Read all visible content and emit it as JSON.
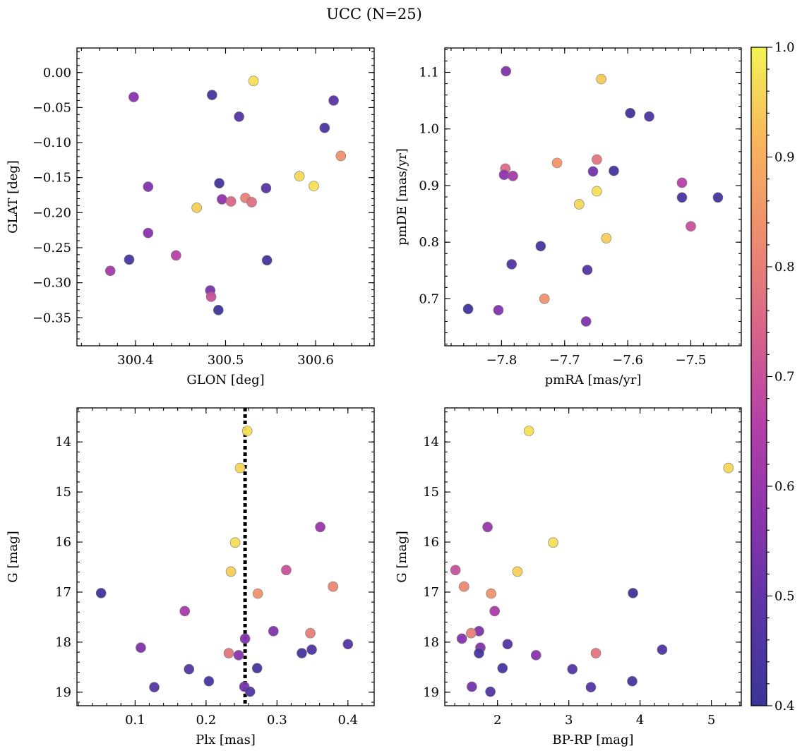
{
  "title": "UCC (N=25)",
  "colormap": {
    "name": "plasma",
    "vmin": 0.4,
    "vmax": 1.0,
    "ticks": [
      0.4,
      0.5,
      0.6,
      0.7,
      0.8,
      0.9,
      1.0
    ],
    "tick_labels": [
      "0.4",
      "0.5",
      "0.6",
      "0.7",
      "0.8",
      "0.9",
      "1.0"
    ],
    "stops": [
      "#3b3597",
      "#5a35a6",
      "#8b33ad",
      "#b53fa8",
      "#d8648a",
      "#ee8c6e",
      "#f9b55d",
      "#f2f453"
    ]
  },
  "chart_data": [
    {
      "type": "scatter",
      "id": "glon-glat",
      "xlabel": "GLON [deg]",
      "ylabel": "GLAT [deg]",
      "xlim": [
        300.335,
        300.665
      ],
      "ylim": [
        -0.39,
        0.035
      ],
      "y_inverted": false,
      "xticks": [
        300.4,
        300.5,
        300.6
      ],
      "xtick_labels": [
        "300.4",
        "300.5",
        "300.6"
      ],
      "yticks": [
        0.0,
        -0.05,
        -0.1,
        -0.15,
        -0.2,
        -0.25,
        -0.3,
        -0.35
      ],
      "ytick_labels": [
        "0.00",
        "−0.05",
        "−0.10",
        "−0.15",
        "−0.20",
        "−0.25",
        "−0.30",
        "−0.35"
      ],
      "points": [
        {
          "x": 300.531,
          "y": -0.012,
          "c": 0.97
        },
        {
          "x": 300.398,
          "y": -0.035,
          "c": 0.57
        },
        {
          "x": 300.485,
          "y": -0.032,
          "c": 0.42
        },
        {
          "x": 300.62,
          "y": -0.04,
          "c": 0.48
        },
        {
          "x": 300.515,
          "y": -0.063,
          "c": 0.47
        },
        {
          "x": 300.61,
          "y": -0.079,
          "c": 0.45
        },
        {
          "x": 300.628,
          "y": -0.119,
          "c": 0.84
        },
        {
          "x": 300.582,
          "y": -0.148,
          "c": 0.96
        },
        {
          "x": 300.493,
          "y": -0.158,
          "c": 0.43
        },
        {
          "x": 300.414,
          "y": -0.163,
          "c": 0.56
        },
        {
          "x": 300.598,
          "y": -0.162,
          "c": 0.97
        },
        {
          "x": 300.545,
          "y": -0.165,
          "c": 0.47
        },
        {
          "x": 300.468,
          "y": -0.193,
          "c": 0.95
        },
        {
          "x": 300.496,
          "y": -0.181,
          "c": 0.58
        },
        {
          "x": 300.506,
          "y": -0.184,
          "c": 0.75
        },
        {
          "x": 300.522,
          "y": -0.179,
          "c": 0.81
        },
        {
          "x": 300.529,
          "y": -0.185,
          "c": 0.77
        },
        {
          "x": 300.414,
          "y": -0.229,
          "c": 0.57
        },
        {
          "x": 300.445,
          "y": -0.261,
          "c": 0.66
        },
        {
          "x": 300.393,
          "y": -0.267,
          "c": 0.44
        },
        {
          "x": 300.546,
          "y": -0.268,
          "c": 0.43
        },
        {
          "x": 300.372,
          "y": -0.283,
          "c": 0.62
        },
        {
          "x": 300.483,
          "y": -0.311,
          "c": 0.54
        },
        {
          "x": 300.484,
          "y": -0.32,
          "c": 0.7
        },
        {
          "x": 300.492,
          "y": -0.339,
          "c": 0.41
        }
      ]
    },
    {
      "type": "scatter",
      "id": "pmra-pmde",
      "xlabel": "pmRA [mas/yr]",
      "ylabel": "pmDE [mas/yr]",
      "xlim": [
        -7.89,
        -7.42
      ],
      "ylim": [
        0.617,
        1.143
      ],
      "y_inverted": false,
      "xticks": [
        -7.8,
        -7.7,
        -7.6,
        -7.5
      ],
      "xtick_labels": [
        "−7.8",
        "−7.7",
        "−7.6",
        "−7.5"
      ],
      "yticks": [
        0.7,
        0.8,
        0.9,
        1.0,
        1.1
      ],
      "ytick_labels": [
        "0.7",
        "0.8",
        "0.9",
        "1.0",
        "1.1"
      ],
      "points": [
        {
          "x": -7.793,
          "y": 1.102,
          "c": 0.55
        },
        {
          "x": -7.642,
          "y": 1.088,
          "c": 0.94
        },
        {
          "x": -7.596,
          "y": 1.028,
          "c": 0.42
        },
        {
          "x": -7.566,
          "y": 1.022,
          "c": 0.45
        },
        {
          "x": -7.649,
          "y": 0.946,
          "c": 0.78
        },
        {
          "x": -7.712,
          "y": 0.94,
          "c": 0.85
        },
        {
          "x": -7.794,
          "y": 0.93,
          "c": 0.76
        },
        {
          "x": -7.622,
          "y": 0.926,
          "c": 0.43
        },
        {
          "x": -7.655,
          "y": 0.925,
          "c": 0.53
        },
        {
          "x": -7.796,
          "y": 0.919,
          "c": 0.58
        },
        {
          "x": -7.782,
          "y": 0.917,
          "c": 0.62
        },
        {
          "x": -7.514,
          "y": 0.905,
          "c": 0.66
        },
        {
          "x": -7.649,
          "y": 0.89,
          "c": 0.97
        },
        {
          "x": -7.514,
          "y": 0.879,
          "c": 0.44
        },
        {
          "x": -7.457,
          "y": 0.879,
          "c": 0.43
        },
        {
          "x": -7.677,
          "y": 0.867,
          "c": 0.96
        },
        {
          "x": -7.5,
          "y": 0.828,
          "c": 0.7
        },
        {
          "x": -7.634,
          "y": 0.807,
          "c": 0.95
        },
        {
          "x": -7.738,
          "y": 0.793,
          "c": 0.44
        },
        {
          "x": -7.784,
          "y": 0.761,
          "c": 0.46
        },
        {
          "x": -7.664,
          "y": 0.751,
          "c": 0.47
        },
        {
          "x": -7.732,
          "y": 0.7,
          "c": 0.84
        },
        {
          "x": -7.853,
          "y": 0.682,
          "c": 0.41
        },
        {
          "x": -7.805,
          "y": 0.68,
          "c": 0.56
        },
        {
          "x": -7.666,
          "y": 0.66,
          "c": 0.55
        }
      ]
    },
    {
      "type": "scatter",
      "id": "plx-g",
      "xlabel": "Plx [mas]",
      "ylabel": "G [mag]",
      "xlim": [
        0.018,
        0.437
      ],
      "ylim": [
        13.32,
        19.27
      ],
      "y_inverted": true,
      "vline": {
        "x": 0.255,
        "style": "dotted",
        "color": "#000000"
      },
      "xticks": [
        0.1,
        0.2,
        0.3,
        0.4
      ],
      "xtick_labels": [
        "0.1",
        "0.2",
        "0.3",
        "0.4"
      ],
      "yticks": [
        14,
        15,
        16,
        17,
        18,
        19
      ],
      "ytick_labels": [
        "14",
        "15",
        "16",
        "17",
        "18",
        "19"
      ],
      "points": [
        {
          "x": 0.258,
          "y": 13.78,
          "c": 0.97
        },
        {
          "x": 0.248,
          "y": 14.52,
          "c": 0.96
        },
        {
          "x": 0.361,
          "y": 15.7,
          "c": 0.6
        },
        {
          "x": 0.241,
          "y": 16.01,
          "c": 0.97
        },
        {
          "x": 0.235,
          "y": 16.59,
          "c": 0.95
        },
        {
          "x": 0.313,
          "y": 16.56,
          "c": 0.7
        },
        {
          "x": 0.379,
          "y": 16.89,
          "c": 0.82
        },
        {
          "x": 0.273,
          "y": 17.03,
          "c": 0.84
        },
        {
          "x": 0.052,
          "y": 17.02,
          "c": 0.41
        },
        {
          "x": 0.17,
          "y": 17.38,
          "c": 0.63
        },
        {
          "x": 0.295,
          "y": 17.78,
          "c": 0.55
        },
        {
          "x": 0.347,
          "y": 17.82,
          "c": 0.8
        },
        {
          "x": 0.255,
          "y": 17.93,
          "c": 0.56
        },
        {
          "x": 0.4,
          "y": 18.04,
          "c": 0.47
        },
        {
          "x": 0.108,
          "y": 18.11,
          "c": 0.55
        },
        {
          "x": 0.349,
          "y": 18.15,
          "c": 0.45
        },
        {
          "x": 0.335,
          "y": 18.22,
          "c": 0.44
        },
        {
          "x": 0.232,
          "y": 18.22,
          "c": 0.78
        },
        {
          "x": 0.246,
          "y": 18.26,
          "c": 0.57
        },
        {
          "x": 0.272,
          "y": 18.52,
          "c": 0.44
        },
        {
          "x": 0.176,
          "y": 18.54,
          "c": 0.47
        },
        {
          "x": 0.204,
          "y": 18.78,
          "c": 0.44
        },
        {
          "x": 0.254,
          "y": 18.89,
          "c": 0.53
        },
        {
          "x": 0.127,
          "y": 18.9,
          "c": 0.47
        },
        {
          "x": 0.262,
          "y": 18.99,
          "c": 0.46
        }
      ]
    },
    {
      "type": "scatter",
      "id": "bprp-g",
      "xlabel": "BP-RP [mag]",
      "ylabel": "G [mag]",
      "xlim": [
        1.26,
        5.42
      ],
      "ylim": [
        13.32,
        19.27
      ],
      "y_inverted": true,
      "xticks": [
        2,
        3,
        4,
        5
      ],
      "xtick_labels": [
        "2",
        "3",
        "4",
        "5"
      ],
      "yticks": [
        14,
        15,
        16,
        17,
        18,
        19
      ],
      "ytick_labels": [
        "14",
        "15",
        "16",
        "17",
        "18",
        "19"
      ],
      "points": [
        {
          "x": 2.44,
          "y": 13.78,
          "c": 0.97
        },
        {
          "x": 5.24,
          "y": 14.52,
          "c": 0.96
        },
        {
          "x": 1.86,
          "y": 15.7,
          "c": 0.6
        },
        {
          "x": 2.78,
          "y": 16.01,
          "c": 0.97
        },
        {
          "x": 2.28,
          "y": 16.59,
          "c": 0.95
        },
        {
          "x": 1.41,
          "y": 16.56,
          "c": 0.7
        },
        {
          "x": 1.53,
          "y": 16.89,
          "c": 0.82
        },
        {
          "x": 1.91,
          "y": 17.03,
          "c": 0.84
        },
        {
          "x": 3.9,
          "y": 17.02,
          "c": 0.41
        },
        {
          "x": 1.96,
          "y": 17.38,
          "c": 0.63
        },
        {
          "x": 1.74,
          "y": 17.78,
          "c": 0.55
        },
        {
          "x": 1.63,
          "y": 17.82,
          "c": 0.8
        },
        {
          "x": 1.5,
          "y": 17.93,
          "c": 0.56
        },
        {
          "x": 2.14,
          "y": 18.04,
          "c": 0.47
        },
        {
          "x": 1.76,
          "y": 18.11,
          "c": 0.55
        },
        {
          "x": 4.31,
          "y": 18.15,
          "c": 0.45
        },
        {
          "x": 1.74,
          "y": 18.22,
          "c": 0.44
        },
        {
          "x": 3.38,
          "y": 18.22,
          "c": 0.78
        },
        {
          "x": 2.54,
          "y": 18.26,
          "c": 0.57
        },
        {
          "x": 2.07,
          "y": 18.52,
          "c": 0.44
        },
        {
          "x": 3.05,
          "y": 18.54,
          "c": 0.47
        },
        {
          "x": 3.89,
          "y": 18.78,
          "c": 0.44
        },
        {
          "x": 1.64,
          "y": 18.89,
          "c": 0.53
        },
        {
          "x": 3.31,
          "y": 18.9,
          "c": 0.47
        },
        {
          "x": 1.9,
          "y": 18.99,
          "c": 0.46
        }
      ]
    }
  ]
}
